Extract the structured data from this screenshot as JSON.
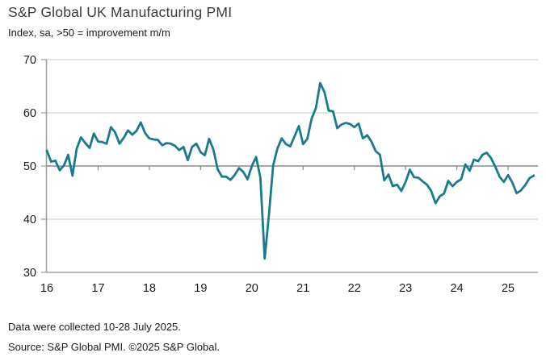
{
  "header": {
    "title": "S&P Global UK Manufacturing PMI",
    "subtitle": "Index, sa, >50 = improvement m/m"
  },
  "footer": {
    "note": "Data were collected 10-28 July 2025.",
    "source": "Source: S&P Global PMI. ©2025 S&P Global."
  },
  "colors": {
    "line": "#1a7a8e",
    "grid_light": "#c8c8c8",
    "grid_baseline": "#8a8a8a",
    "axis": "#a0a0a0",
    "text": "#1a1a1a"
  },
  "chart_data": {
    "type": "line",
    "title": "S&P Global UK Manufacturing PMI",
    "subtitle": "Index, sa, >50 = improvement m/m",
    "xlabel": "",
    "ylabel": "",
    "ylim": [
      30,
      70
    ],
    "yticks": [
      30,
      40,
      50,
      60,
      70
    ],
    "baseline": 50,
    "grid": true,
    "legend": false,
    "x_unit": "month",
    "x_start": "2016-01",
    "x_end": "2025-07",
    "xtick_labels": [
      "16",
      "17",
      "18",
      "19",
      "20",
      "21",
      "22",
      "23",
      "24",
      "25"
    ],
    "series": [
      {
        "name": "UK Manufacturing PMI",
        "values": [
          52.9,
          50.8,
          51.0,
          49.2,
          50.1,
          52.1,
          48.2,
          53.3,
          55.4,
          54.3,
          53.4,
          56.1,
          54.6,
          54.5,
          54.2,
          57.3,
          56.3,
          54.2,
          55.3,
          56.7,
          55.9,
          56.6,
          58.2,
          56.2,
          55.2,
          55.0,
          54.9,
          53.9,
          54.3,
          54.2,
          53.8,
          53.0,
          53.6,
          51.1,
          53.6,
          54.2,
          52.6,
          52.0,
          55.1,
          53.1,
          49.4,
          48.0,
          48.0,
          47.4,
          48.3,
          49.6,
          48.9,
          47.5,
          50.0,
          51.7,
          47.8,
          32.6,
          40.7,
          50.1,
          53.3,
          55.2,
          54.1,
          53.7,
          55.6,
          57.5,
          54.1,
          55.1,
          58.9,
          60.9,
          65.6,
          63.9,
          60.4,
          60.3,
          57.1,
          57.8,
          58.1,
          57.9,
          57.3,
          58.0,
          55.2,
          55.8,
          54.6,
          52.8,
          52.1,
          47.3,
          48.4,
          46.2,
          46.5,
          45.3,
          47.0,
          49.3,
          47.9,
          47.8,
          47.1,
          46.5,
          45.3,
          43.0,
          44.3,
          44.8,
          47.2,
          46.2,
          47.0,
          47.5,
          50.3,
          49.1,
          51.2,
          50.9,
          52.1,
          52.5,
          51.5,
          49.9,
          48.0,
          47.0,
          48.3,
          46.9,
          44.9,
          45.4,
          46.4,
          47.7,
          48.2
        ]
      }
    ]
  }
}
